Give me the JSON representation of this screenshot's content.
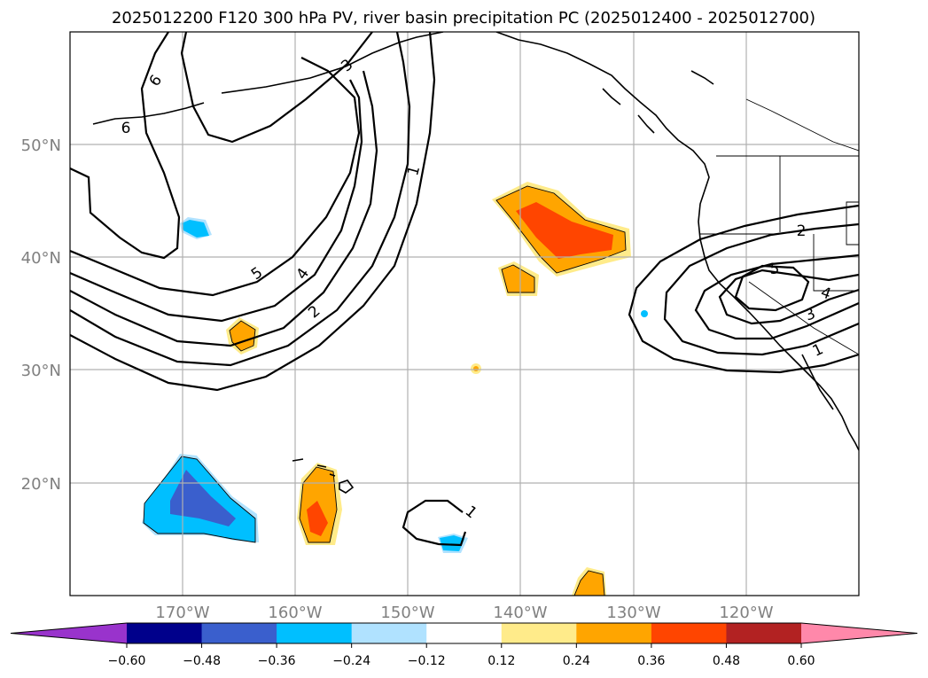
{
  "title": "2025012200 F120 300 hPa PV, river basin precipitation PC (2025012400 - 2025012700)",
  "lat_labels": [
    "50°N",
    "40°N",
    "30°N",
    "20°N"
  ],
  "lon_labels": [
    "170°W",
    "160°W",
    "150°W",
    "140°W",
    "130°W",
    "120°W"
  ],
  "colorbar": {
    "ticks": [
      "−0.60",
      "−0.48",
      "−0.36",
      "−0.24",
      "−0.12",
      "0.12",
      "0.24",
      "0.36",
      "0.48",
      "0.60"
    ],
    "colors": [
      "#9933cc",
      "#00008b",
      "#3a5fcd",
      "#00bfff",
      "#b0e2ff",
      "#ffffff",
      "#ffeb8a",
      "#ffa500",
      "#ff4500",
      "#b22222",
      "#ff88aa"
    ]
  },
  "contour_labels": {
    "west_6a": "6",
    "west_6b": "6",
    "west_5": "5",
    "west_4": "4",
    "west_2": "2",
    "mid_1": "1",
    "east_2": "2",
    "east_5": "5",
    "east_4": "4",
    "east_3": "3",
    "east_1": "1",
    "south_1": "1",
    "north_3": "3"
  }
}
